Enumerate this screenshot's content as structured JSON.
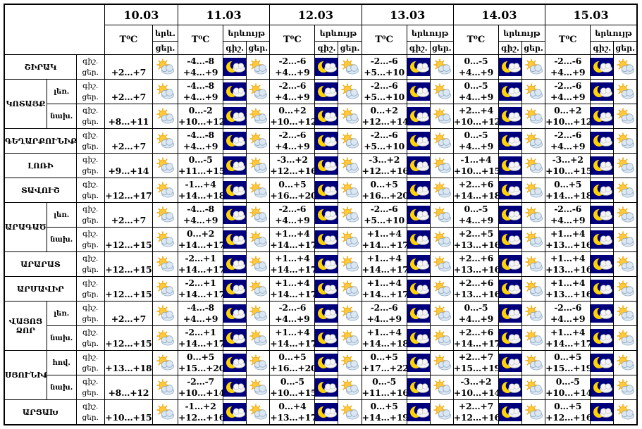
{
  "header": {
    "dates": [
      "10.03",
      "11.03",
      "12.03",
      "13.03",
      "14.03",
      "15.03"
    ],
    "temp_label": "T⁰C",
    "phenomenon_label": "երևույթ",
    "night_label": "գիշ.",
    "day_label": "ցեր.",
    "first_date_phen_top": "երև.",
    "first_date_phen_bottom": "ցեր."
  },
  "side_labels": {
    "night": "գիշ.",
    "day": "ցեր."
  },
  "icons": {
    "day": "sun-cloud",
    "night": "moon-cloud"
  },
  "colors": {
    "night_icon_bg": "#00007d",
    "moon": "#ffd400",
    "sun": "#ffc93d",
    "border": "#000000"
  },
  "groups": [
    {
      "name": "ՇԻՐԱԿ",
      "rows": [
        {
          "sub": null,
          "temps": [
            {
              "d": "+2...+7"
            },
            {
              "n": "-4...-8",
              "d": "+4...+9"
            },
            {
              "n": "-2...-6",
              "d": "+4...+9"
            },
            {
              "n": "-2...-6",
              "d": "+5...+10"
            },
            {
              "n": "0...-5",
              "d": "+4...+9"
            },
            {
              "n": "-2...-6",
              "d": "+4...+9"
            }
          ]
        }
      ]
    },
    {
      "name": "ԿՈՏԱՅՔ",
      "rows": [
        {
          "sub": "լեռ.",
          "temps": [
            {
              "d": "+2...+7"
            },
            {
              "n": "-4...-8",
              "d": "+4...+9"
            },
            {
              "n": "-2...-6",
              "d": "+4...+9"
            },
            {
              "n": "-2...-6",
              "d": "+5...+10"
            },
            {
              "n": "0...-5",
              "d": "+4...+9"
            },
            {
              "n": "-2...-6",
              "d": "+4...+9"
            }
          ]
        },
        {
          "sub": "նախ.",
          "temps": [
            {
              "d": "+8...+11"
            },
            {
              "n": "0...-2",
              "d": "+10...+12"
            },
            {
              "n": "0...+2",
              "d": "+10...+12"
            },
            {
              "n": "0...+2",
              "d": "+12...+14"
            },
            {
              "n": "+2...+4",
              "d": "+10...+12"
            },
            {
              "n": "0...+2",
              "d": "+10...+12"
            }
          ]
        }
      ]
    },
    {
      "name": "ԳԵՂԱՐՔՈՒՆԻՔ",
      "rows": [
        {
          "sub": null,
          "temps": [
            {
              "d": "+2...+7"
            },
            {
              "n": "-4...-8",
              "d": "+4...+9"
            },
            {
              "n": "-2...-6",
              "d": "+4...+9"
            },
            {
              "n": "-2...-6",
              "d": "+5...+10"
            },
            {
              "n": "0...-5",
              "d": "+4...+9"
            },
            {
              "n": "-2...-6",
              "d": "+4...+9"
            }
          ]
        }
      ]
    },
    {
      "name": "ԼՈՌԻ",
      "rows": [
        {
          "sub": null,
          "temps": [
            {
              "d": "+9...+14"
            },
            {
              "n": "0...-5",
              "d": "+11...+15"
            },
            {
              "n": "-3...+2",
              "d": "+12...+16"
            },
            {
              "n": "-3...+2",
              "d": "+12...+16"
            },
            {
              "n": "-1...+4",
              "d": "+10...+15"
            },
            {
              "n": "-3...+2",
              "d": "+10...+15"
            }
          ]
        }
      ]
    },
    {
      "name": "ՏԱՎՈՒՇ",
      "rows": [
        {
          "sub": null,
          "temps": [
            {
              "d": "+12...+17"
            },
            {
              "n": "-1...+4",
              "d": "+14...+18"
            },
            {
              "n": "0...+5",
              "d": "+16...+20"
            },
            {
              "n": "0...+5",
              "d": "+16...+20"
            },
            {
              "n": "+2...+6",
              "d": "+14...+18"
            },
            {
              "n": "0...+5",
              "d": "+14...+18"
            }
          ]
        }
      ]
    },
    {
      "name": "ԱՐԱԳԱԾՈՏՆ",
      "rows": [
        {
          "sub": "լեռ.",
          "temps": [
            {
              "d": "+2...+7"
            },
            {
              "n": "-4...-8",
              "d": "+4...+9"
            },
            {
              "n": "-2...-6",
              "d": "+4...+9"
            },
            {
              "n": "-2...-6",
              "d": "+5...+10"
            },
            {
              "n": "0...-5",
              "d": "+4...+9"
            },
            {
              "n": "-2...-6",
              "d": "+4...+9"
            }
          ]
        },
        {
          "sub": "նախ.",
          "temps": [
            {
              "d": "+12...+15"
            },
            {
              "n": "0...+2",
              "d": "+14...+17"
            },
            {
              "n": "+1...+4",
              "d": "+14...+17"
            },
            {
              "n": "+1...+4",
              "d": "+14...+17"
            },
            {
              "n": "+2...+5",
              "d": "+13...+16"
            },
            {
              "n": "+1...+4",
              "d": "+13...+16"
            }
          ]
        }
      ]
    },
    {
      "name": "ԱՐԱՐԱՏ",
      "rows": [
        {
          "sub": null,
          "temps": [
            {
              "d": "+12...+15"
            },
            {
              "n": "-2...+1",
              "d": "+14...+17"
            },
            {
              "n": "+1...+4",
              "d": "+14...+17"
            },
            {
              "n": "+1...+4",
              "d": "+14...+17"
            },
            {
              "n": "+2...+6",
              "d": "+13...+16"
            },
            {
              "n": "+1...+4",
              "d": "+13...+16"
            }
          ]
        }
      ]
    },
    {
      "name": "ԱՐՄԱՎԻՐ",
      "rows": [
        {
          "sub": null,
          "temps": [
            {
              "d": "+12...+15"
            },
            {
              "n": "-2...+1",
              "d": "+14...+17"
            },
            {
              "n": "+1...+4",
              "d": "+14...+17"
            },
            {
              "n": "+1...+4",
              "d": "+14...+17"
            },
            {
              "n": "+2...+6",
              "d": "+13...+16"
            },
            {
              "n": "+1...+4",
              "d": "+13...+16"
            }
          ]
        }
      ]
    },
    {
      "name": "ՎԱՅՈՑ ՁՈՐ",
      "rows": [
        {
          "sub": "լեռ.",
          "temps": [
            {
              "d": "+2...+7"
            },
            {
              "n": "-4...-8",
              "d": "+4...+9"
            },
            {
              "n": "-2...-6",
              "d": "+4...+9"
            },
            {
              "n": "-2...-6",
              "d": "+4...+9"
            },
            {
              "n": "0...-5",
              "d": "+4...+9"
            },
            {
              "n": "-2...-6",
              "d": "+4...+9"
            }
          ]
        },
        {
          "sub": "նախ.",
          "temps": [
            {
              "d": "+12...+15"
            },
            {
              "n": "-2...+1",
              "d": "+14...+17"
            },
            {
              "n": "+1...+4",
              "d": "+14...+17"
            },
            {
              "n": "+1...+4",
              "d": "+14...+18"
            },
            {
              "n": "+2...+6",
              "d": "+14...+17"
            },
            {
              "n": "+1...+4",
              "d": "+14...+17"
            }
          ]
        }
      ]
    },
    {
      "name": "ՍՅՈՒՆԻՔ",
      "rows": [
        {
          "sub": "հով.",
          "temps": [
            {
              "d": "+13...+18"
            },
            {
              "n": "0...+5",
              "d": "+15...+20"
            },
            {
              "n": "0...+5",
              "d": "+16...+20"
            },
            {
              "n": "0...+5",
              "d": "+17...+22"
            },
            {
              "n": "+2...+7",
              "d": "+15...+19"
            },
            {
              "n": "0...+5",
              "d": "+15...+19"
            }
          ]
        },
        {
          "sub": "նախ.",
          "temps": [
            {
              "d": "+8...+12"
            },
            {
              "n": "-2...-7",
              "d": "+10...+14"
            },
            {
              "n": "0...-5",
              "d": "+10...+15"
            },
            {
              "n": "0...-5",
              "d": "+11...+16"
            },
            {
              "n": "-3...+2",
              "d": "+10...+14"
            },
            {
              "n": "0...-5",
              "d": "+10...+14"
            }
          ]
        }
      ]
    },
    {
      "name": "ԱՐՑԱԽ",
      "rows": [
        {
          "sub": null,
          "temps": [
            {
              "d": "+10...+15"
            },
            {
              "n": "-1...+2",
              "d": "+12...+16"
            },
            {
              "n": "0...+4",
              "d": "+13...+17"
            },
            {
              "n": "0...+5",
              "d": "+14...+19"
            },
            {
              "n": "+2...+7",
              "d": "+12...+16"
            },
            {
              "n": "0...+5",
              "d": "+12...+16"
            }
          ]
        }
      ]
    }
  ]
}
